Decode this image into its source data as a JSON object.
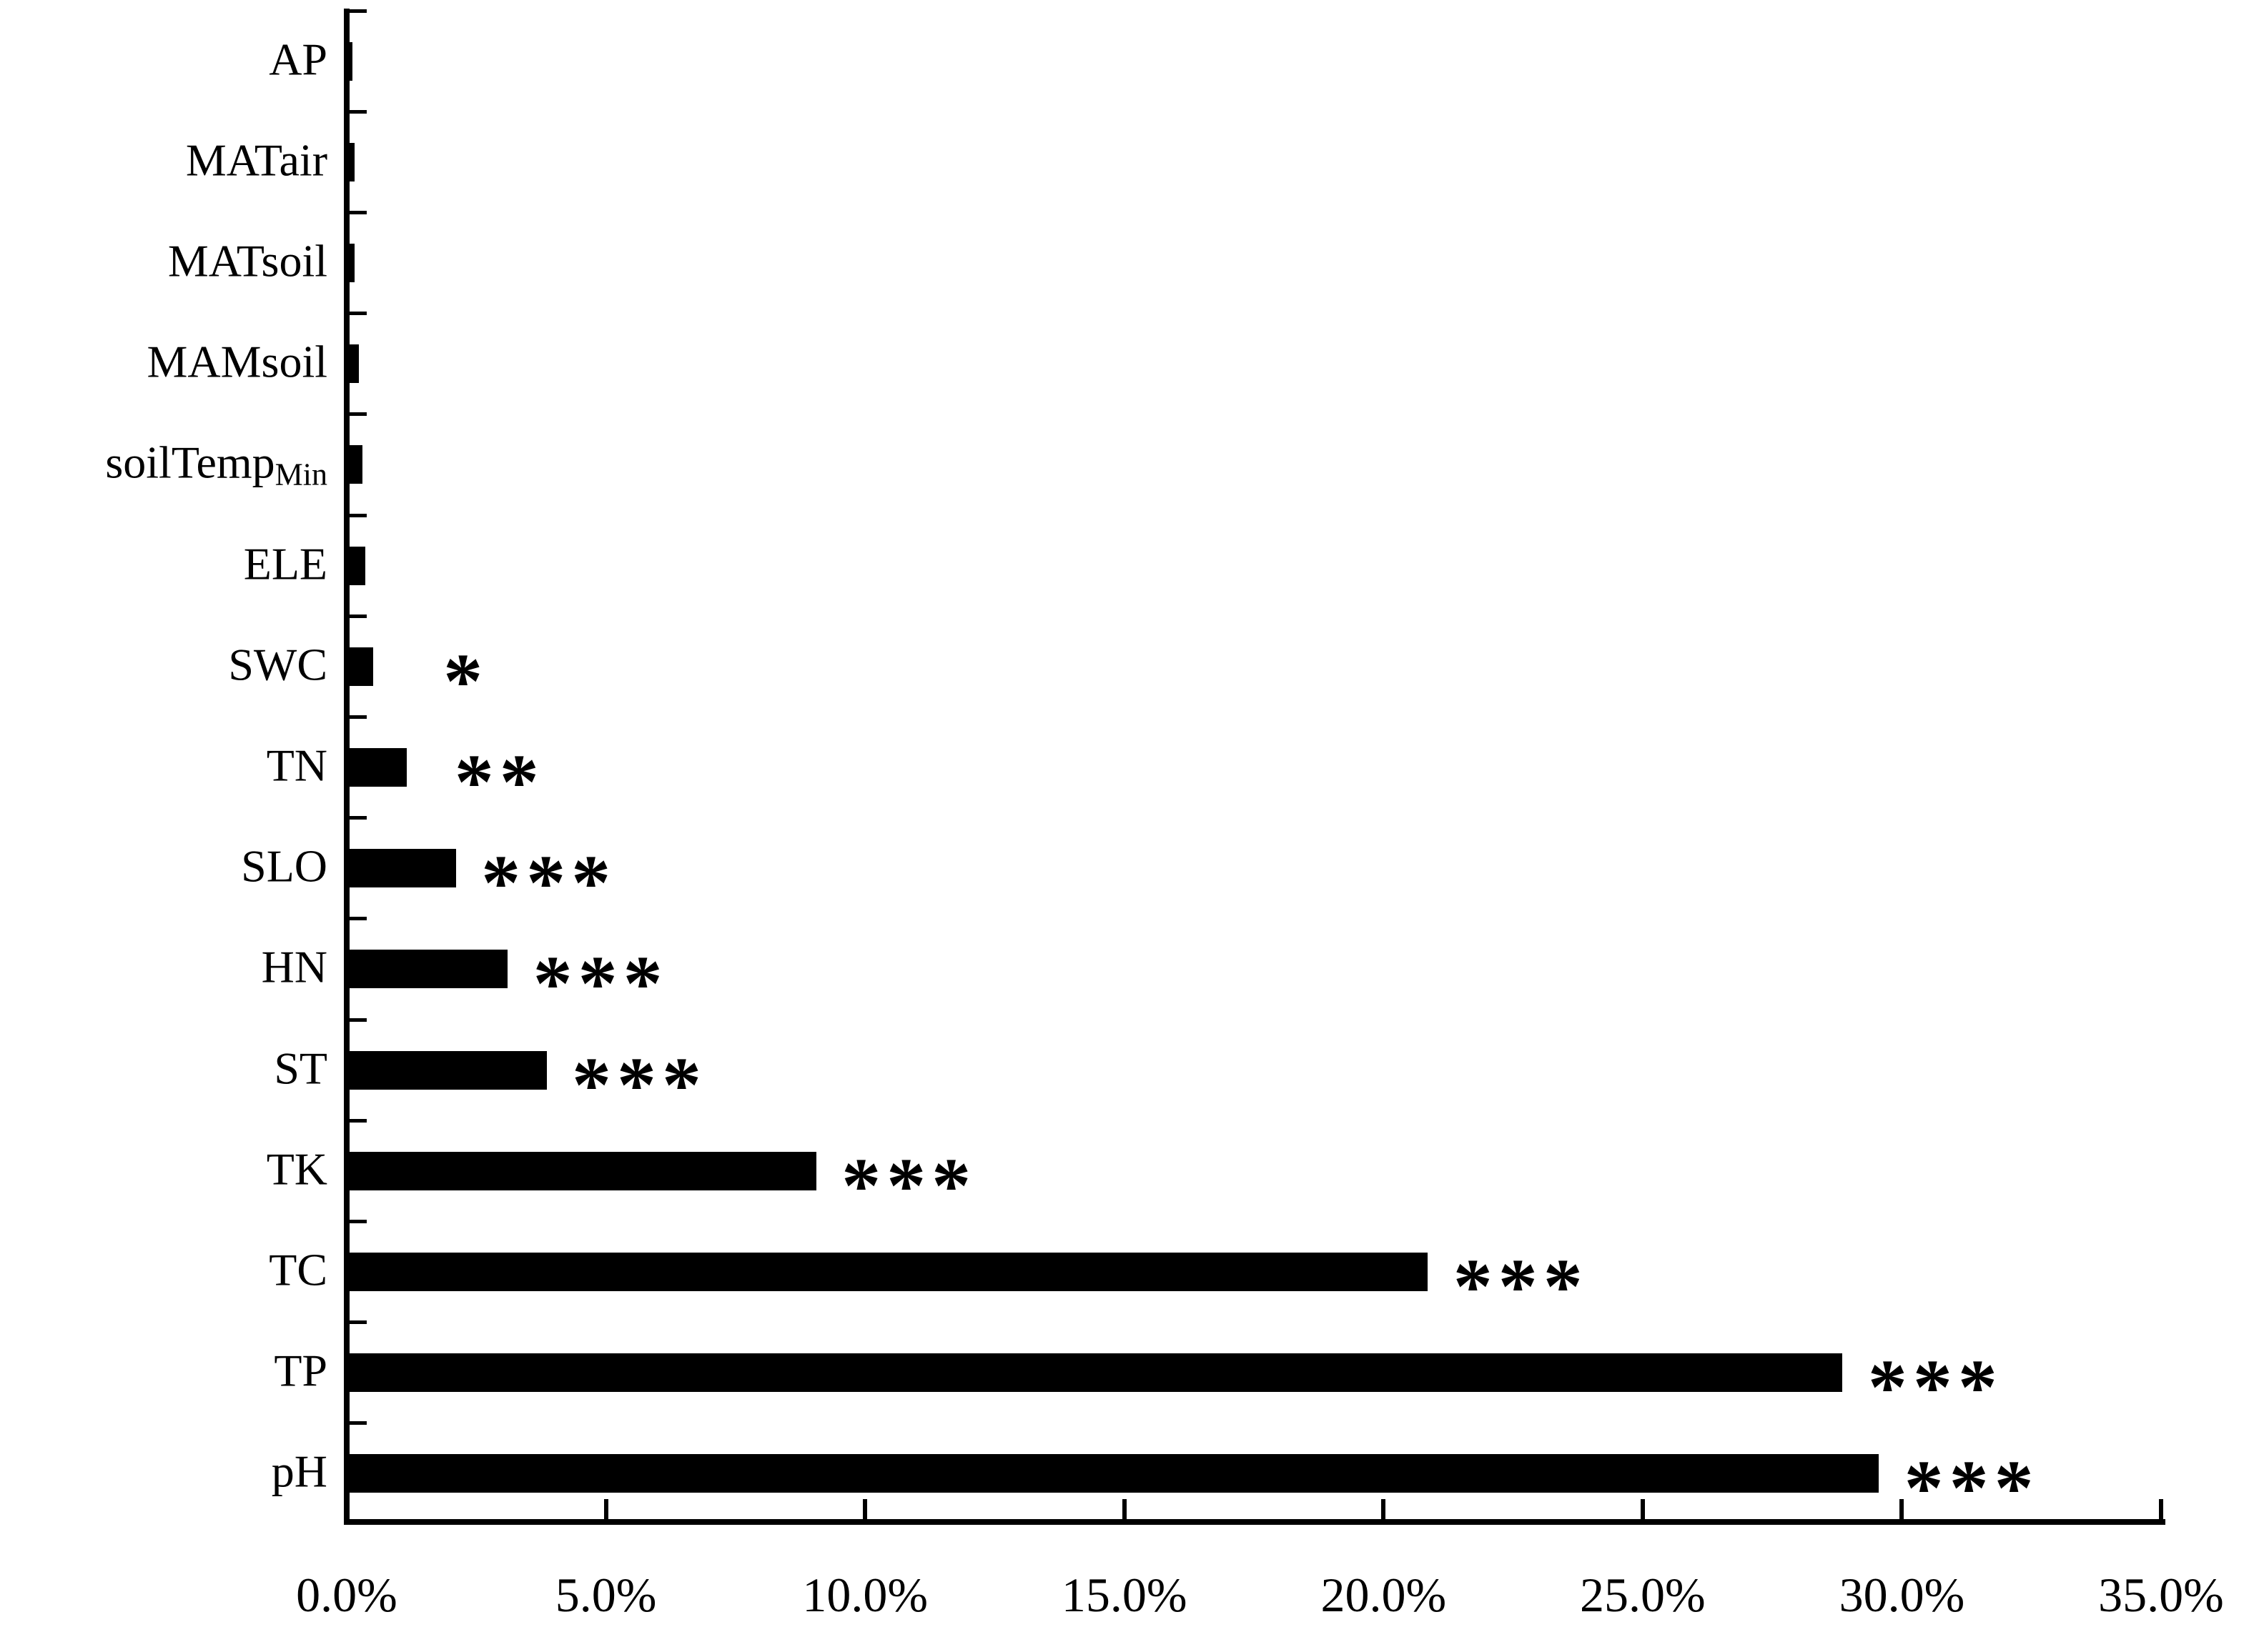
{
  "chart_data": {
    "type": "bar",
    "orientation": "horizontal",
    "title": "",
    "xlabel": "",
    "ylabel": "",
    "xlim": [
      0,
      35
    ],
    "x_tick_step_pct": 5,
    "x_tick_labels": [
      "0.0%",
      "5.0%",
      "10.0%",
      "15.0%",
      "20.0%",
      "25.0%",
      "30.0%",
      "35.0%"
    ],
    "grid": "off",
    "legend": "none",
    "bar_color": "#000000",
    "axis_color": "#000000",
    "background_color": "#ffffff",
    "categories": [
      {
        "label": "AP",
        "subscript": "",
        "value_pct": 0.05,
        "significance": ""
      },
      {
        "label": "MATair",
        "subscript": "",
        "value_pct": 0.1,
        "significance": ""
      },
      {
        "label": "MATsoil",
        "subscript": "",
        "value_pct": 0.1,
        "significance": ""
      },
      {
        "label": "MAMsoil",
        "subscript": "",
        "value_pct": 0.18,
        "significance": ""
      },
      {
        "label": "soilTemp",
        "subscript": "Min",
        "value_pct": 0.25,
        "significance": ""
      },
      {
        "label": "ELE",
        "subscript": "",
        "value_pct": 0.3,
        "significance": ""
      },
      {
        "label": "SWC",
        "subscript": "",
        "value_pct": 0.45,
        "significance": "*"
      },
      {
        "label": "TN",
        "subscript": "",
        "value_pct": 1.1,
        "significance": "**"
      },
      {
        "label": "SLO",
        "subscript": "",
        "value_pct": 2.05,
        "significance": "***"
      },
      {
        "label": "HN",
        "subscript": "",
        "value_pct": 3.05,
        "significance": "***"
      },
      {
        "label": "ST",
        "subscript": "",
        "value_pct": 3.8,
        "significance": "***"
      },
      {
        "label": "TK",
        "subscript": "",
        "value_pct": 9.0,
        "significance": "***"
      },
      {
        "label": "TC",
        "subscript": "",
        "value_pct": 20.8,
        "significance": "***"
      },
      {
        "label": "TP",
        "subscript": "",
        "value_pct": 28.8,
        "significance": "***"
      },
      {
        "label": "pH",
        "subscript": "",
        "value_pct": 29.5,
        "significance": "***"
      }
    ]
  }
}
